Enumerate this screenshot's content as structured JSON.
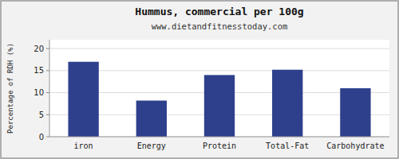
{
  "chart_data": {
    "type": "bar",
    "title": "Hummus, commercial per 100g",
    "subtitle": "www.dietandfitnesstoday.com",
    "categories": [
      "iron",
      "Energy",
      "Protein",
      "Total-Fat",
      "Carbohydrate"
    ],
    "values": [
      17,
      8.2,
      14,
      15.2,
      11
    ],
    "color": "#2e3f8c",
    "ylabel": "Percentage of RDH (%)",
    "ylim": [
      0,
      22
    ],
    "yticks": [
      0,
      5,
      10,
      15,
      20
    ],
    "grid": true
  }
}
